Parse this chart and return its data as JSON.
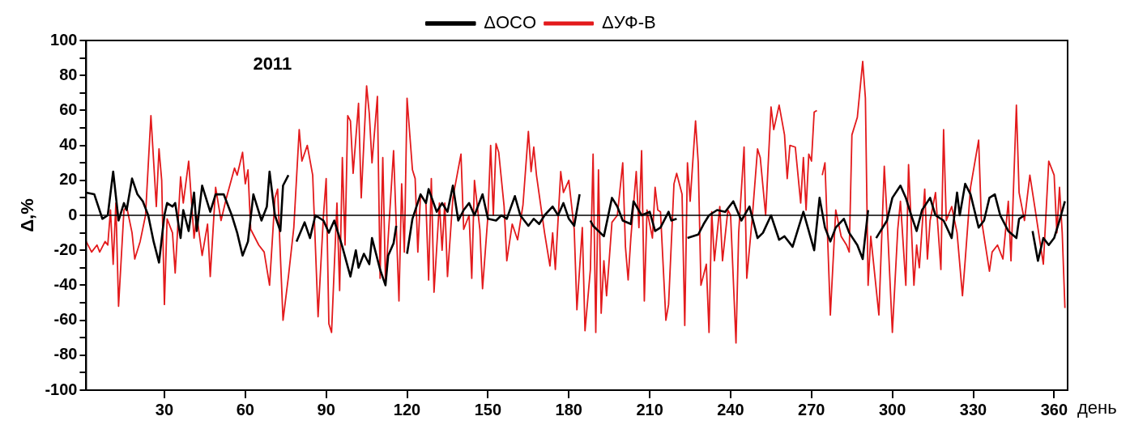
{
  "chart_data": {
    "type": "line",
    "title": "2011",
    "xlabel": "день",
    "ylabel": "Δ,%",
    "xlim": [
      1,
      365
    ],
    "xticks": [
      30,
      60,
      90,
      120,
      150,
      180,
      210,
      240,
      270,
      300,
      330,
      360
    ],
    "ylim": [
      -100,
      100
    ],
    "yticks": [
      -100,
      {
        "value": -90,
        "label": null
      },
      -80,
      {
        "value": -70,
        "label": null
      },
      -60,
      {
        "value": -50,
        "label": null
      },
      -40,
      {
        "value": -30,
        "label": null
      },
      -20,
      {
        "value": -10,
        "label": null
      },
      0,
      {
        "value": 10,
        "label": null
      },
      20,
      {
        "value": 30,
        "label": null
      },
      40,
      {
        "value": 50,
        "label": null
      },
      60,
      {
        "value": 70,
        "label": null
      },
      80,
      {
        "value": 90,
        "label": null
      },
      100
    ],
    "grid": false,
    "legend": "top",
    "ref_lines": [
      {
        "axis": "y",
        "value": 0,
        "color": "#000000"
      }
    ],
    "series": [
      {
        "name": "ΔOCO",
        "color": "#000000",
        "x": [
          1,
          4,
          7,
          9,
          11,
          13,
          15,
          16,
          18,
          20,
          22,
          24,
          26,
          28,
          30,
          31,
          33,
          34,
          36,
          37,
          39,
          41,
          42,
          44,
          47,
          49,
          52,
          55,
          57,
          59,
          61,
          63,
          66,
          68,
          69,
          71,
          73,
          74,
          76,
          77,
          79,
          82,
          84,
          86,
          89,
          91,
          93,
          96,
          99,
          101,
          102,
          104,
          106,
          107,
          110,
          112,
          113,
          115,
          116,
          118,
          120,
          122,
          125,
          127,
          128,
          131,
          133,
          135,
          137,
          139,
          141,
          143,
          145,
          148,
          150,
          153,
          155,
          157,
          160,
          162,
          165,
          167,
          169,
          171,
          174,
          176,
          178,
          180,
          182,
          184,
          185,
          188,
          189,
          193,
          196,
          198,
          200,
          203,
          204,
          207,
          210,
          212,
          214,
          217,
          218,
          220,
          222,
          224,
          228,
          230,
          232,
          235,
          238,
          241,
          244,
          247,
          250,
          252,
          255,
          258,
          260,
          263,
          267,
          271,
          273,
          275,
          277,
          279,
          282,
          284,
          287,
          289,
          291,
          292,
          294,
          298,
          300,
          303,
          305,
          307,
          309,
          311,
          314,
          316,
          319,
          322,
          324,
          325,
          327,
          329,
          332,
          334,
          336,
          338,
          340,
          343,
          346,
          347,
          349,
          351,
          352,
          354,
          356,
          358,
          360,
          362,
          364
        ],
        "values": [
          13,
          12,
          -2,
          0,
          25,
          -3,
          7,
          3,
          21,
          12,
          8,
          0,
          -15,
          -27,
          0,
          7,
          5,
          7,
          -13,
          3,
          -9,
          13,
          -9,
          17,
          2,
          12,
          12,
          0,
          -10,
          -23,
          -15,
          12,
          -3,
          5,
          25,
          0,
          -9,
          17,
          23,
          null,
          -15,
          -4,
          -13,
          0,
          -3,
          -10,
          -3,
          -18,
          -35,
          -20,
          -30,
          -22,
          -28,
          -13,
          -31,
          -40,
          -23,
          -16,
          -6,
          null,
          -22,
          -2,
          12,
          7,
          15,
          2,
          7,
          2,
          17,
          -3,
          3,
          7,
          0,
          12,
          -2,
          -3,
          0,
          -2,
          11,
          0,
          -6,
          -2,
          -5,
          0,
          5,
          0,
          7,
          -2,
          -6,
          12,
          null,
          -3,
          -6,
          -12,
          10,
          5,
          -3,
          -5,
          8,
          0,
          2,
          -9,
          -7,
          2,
          -3,
          -2,
          null,
          -13,
          -11,
          -5,
          0,
          3,
          2,
          8,
          -3,
          5,
          -13,
          -10,
          0,
          -14,
          -12,
          -18,
          2,
          -20,
          10,
          -7,
          -15,
          -7,
          -2,
          -10,
          -17,
          -25,
          3,
          null,
          -13,
          -3,
          10,
          17,
          10,
          0,
          -9,
          3,
          10,
          0,
          -3,
          -13,
          13,
          0,
          18,
          12,
          -7,
          -3,
          10,
          12,
          0,
          -9,
          -13,
          -2,
          0,
          null,
          -9,
          -26,
          -13,
          -17,
          -13,
          -3,
          8
        ]
      },
      {
        "name": "ΔУФ-В",
        "color": "#e31a1c",
        "x": [
          1,
          3,
          5,
          6,
          8,
          9,
          10,
          11,
          12,
          13,
          15,
          16,
          18,
          19,
          21,
          23,
          25,
          27,
          28,
          29,
          30,
          31,
          33,
          34,
          36,
          37,
          39,
          41,
          42,
          44,
          46,
          47,
          49,
          51,
          53,
          56,
          57,
          59,
          60,
          61,
          62,
          65,
          67,
          69,
          71,
          72,
          74,
          76,
          78,
          80,
          81,
          83,
          85,
          87,
          89,
          90,
          91,
          92,
          94,
          95,
          96,
          97,
          98,
          99,
          100,
          102,
          103,
          105,
          106,
          107,
          109,
          110,
          111,
          112,
          115,
          117,
          118,
          119,
          120,
          122,
          123,
          124,
          125,
          127,
          128,
          129,
          130,
          132,
          133,
          134,
          135,
          137,
          140,
          141,
          143,
          144,
          145,
          147,
          148,
          150,
          151,
          152,
          153,
          154,
          156,
          157,
          159,
          161,
          163,
          165,
          166,
          167,
          168,
          171,
          173,
          174,
          175,
          177,
          178,
          180,
          182,
          183,
          185,
          186,
          188,
          189,
          190,
          191,
          192,
          193,
          194,
          196,
          198,
          200,
          201,
          202,
          203,
          205,
          206,
          207,
          208,
          209,
          211,
          212,
          213,
          214,
          216,
          217,
          219,
          220,
          222,
          223,
          224,
          225,
          227,
          228,
          229,
          231,
          232,
          233,
          234,
          236,
          237,
          239,
          240,
          242,
          243,
          245,
          246,
          248,
          250,
          251,
          253,
          255,
          256,
          258,
          260,
          261,
          262,
          264,
          266,
          267,
          268,
          269,
          270,
          271,
          272,
          273,
          274,
          275,
          277,
          279,
          281,
          283,
          284,
          285,
          287,
          289,
          290,
          291,
          292,
          295,
          297,
          298,
          300,
          302,
          303,
          305,
          306,
          308,
          309,
          310,
          312,
          313,
          314,
          316,
          318,
          319,
          320,
          322,
          324,
          326,
          327,
          329,
          332,
          333,
          336,
          337,
          339,
          341,
          343,
          344,
          346,
          347,
          349,
          351,
          353,
          356,
          358,
          360,
          361,
          362,
          363,
          364
        ],
        "values": [
          -15,
          -21,
          -17,
          -21,
          -15,
          -17,
          3,
          -28,
          7,
          -52,
          3,
          5,
          -10,
          -25,
          -15,
          0,
          57,
          5,
          38,
          20,
          -51,
          -2,
          -10,
          -33,
          22,
          7,
          31,
          -13,
          0,
          -23,
          -5,
          -35,
          16,
          -3,
          10,
          27,
          23,
          36,
          18,
          26,
          -8,
          -17,
          -21,
          -40,
          10,
          15,
          -60,
          -35,
          -7,
          49,
          31,
          40,
          23,
          -58,
          0,
          21,
          -62,
          -67,
          7,
          -43,
          33,
          -17,
          57,
          54,
          24,
          64,
          10,
          74,
          58,
          30,
          68,
          -36,
          33,
          -38,
          37,
          -49,
          18,
          -21,
          67,
          26,
          21,
          -21,
          12,
          7,
          -37,
          21,
          -44,
          7,
          -20,
          7,
          -35,
          10,
          35,
          -8,
          0,
          -36,
          20,
          -8,
          -42,
          0,
          40,
          0,
          41,
          36,
          5,
          -26,
          -5,
          -14,
          6,
          48,
          25,
          39,
          23,
          -10,
          -29,
          -10,
          -31,
          25,
          13,
          20,
          -8,
          -54,
          -7,
          -66,
          -31,
          35,
          -67,
          26,
          -56,
          -26,
          -46,
          -4,
          0,
          30,
          -18,
          -37,
          -13,
          25,
          -7,
          37,
          -49,
          3,
          -13,
          16,
          3,
          2,
          -60,
          -51,
          18,
          24,
          12,
          -63,
          30,
          8,
          54,
          30,
          -40,
          -28,
          -67,
          2,
          -26,
          5,
          -26,
          3,
          0,
          -73,
          -10,
          39,
          -36,
          -2,
          38,
          33,
          0,
          62,
          49,
          63,
          46,
          21,
          40,
          39,
          7,
          33,
          3,
          35,
          31,
          59,
          60,
          null,
          23,
          30,
          -57,
          3,
          -12,
          -17,
          -21,
          46,
          56,
          88,
          67,
          -40,
          -12,
          -57,
          28,
          0,
          -67,
          -8,
          8,
          -40,
          29,
          -40,
          -17,
          -30,
          15,
          -25,
          -3,
          13,
          -31,
          49,
          -3,
          5,
          -10,
          -46,
          -26,
          16,
          43,
          -2,
          -32,
          -21,
          -17,
          -25,
          8,
          -26,
          63,
          13,
          -3,
          23,
          3,
          -28,
          31,
          23,
          -10,
          16,
          -10,
          -53
        ]
      }
    ]
  }
}
